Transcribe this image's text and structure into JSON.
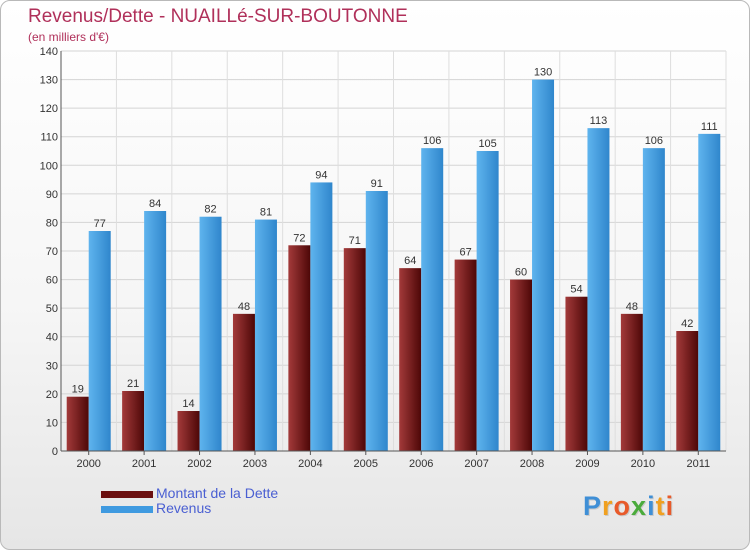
{
  "header": {
    "title": "Revenus/Dette - NUAILLé-SUR-BOUTONNE",
    "subtitle": "(en milliers d'€)"
  },
  "chart_data": {
    "type": "bar",
    "title": "Revenus/Dette - NUAILLé-SUR-BOUTONNE",
    "subtitle": "(en milliers d'€)",
    "categories": [
      "2000",
      "2001",
      "2002",
      "2003",
      "2004",
      "2005",
      "2006",
      "2007",
      "2008",
      "2009",
      "2010",
      "2011"
    ],
    "series": [
      {
        "name": "Montant de la Dette",
        "values": [
          19,
          21,
          14,
          48,
          72,
          71,
          64,
          67,
          60,
          54,
          48,
          42
        ],
        "color": "#7a1a1a"
      },
      {
        "name": "Revenus",
        "values": [
          77,
          84,
          82,
          81,
          94,
          91,
          106,
          105,
          130,
          113,
          106,
          111
        ],
        "color": "#4aa3e2"
      }
    ],
    "ylim": [
      0,
      140
    ],
    "yticks": [
      0,
      10,
      20,
      30,
      40,
      50,
      60,
      70,
      80,
      90,
      100,
      110,
      120,
      130,
      140
    ],
    "grid": true,
    "legend_position": "bottom-left"
  },
  "legend": {
    "items": [
      {
        "label": "Montant de la Dette",
        "color": "#6b0f0f"
      },
      {
        "label": "Revenus",
        "color": "#3f9ae0"
      }
    ]
  },
  "logo": {
    "text": "Proxiti",
    "letters": [
      {
        "char": "P",
        "color": "#3f8fd6"
      },
      {
        "char": "r",
        "color": "#f0a020"
      },
      {
        "char": "o",
        "color": "#e85a2a"
      },
      {
        "char": "x",
        "color": "#4bab3c"
      },
      {
        "char": "i",
        "color": "#3f8fd6"
      },
      {
        "char": "t",
        "color": "#f0a020"
      },
      {
        "char": "i",
        "color": "#e85a2a"
      }
    ]
  }
}
